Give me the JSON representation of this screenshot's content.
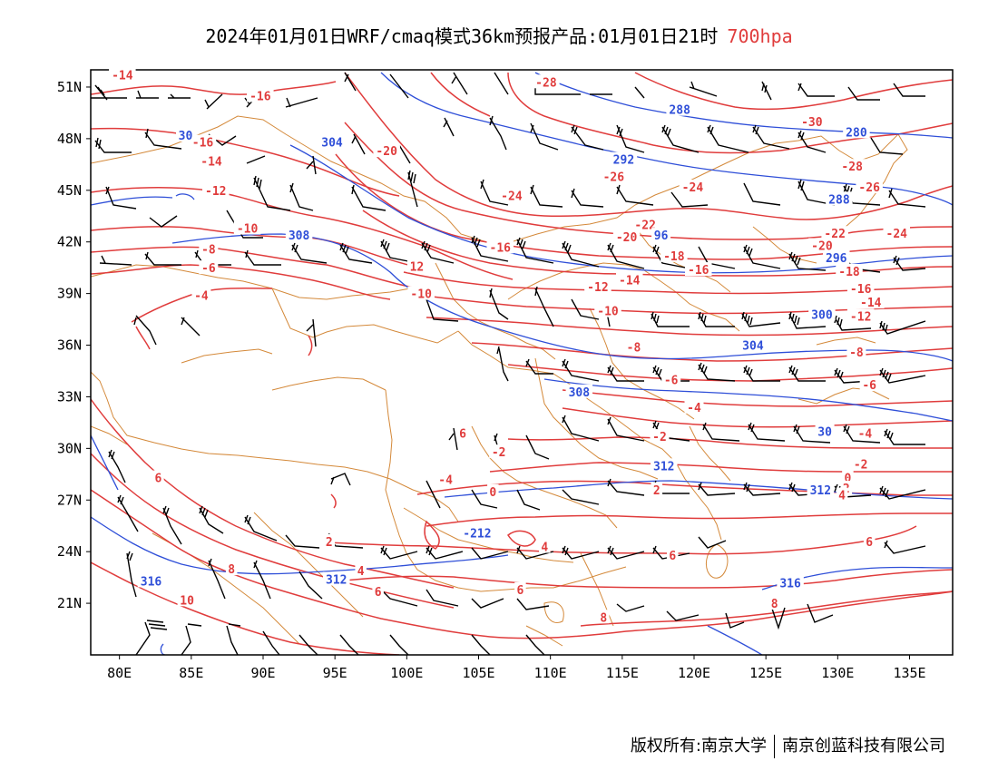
{
  "title": {
    "text": "2024年01月01日WRF/cmaq模式36km预报产品:01月01日21时",
    "level": "700hpa"
  },
  "footer": {
    "copyright": "版权所有:南京大学",
    "company": "南京创蓝科技有限公司"
  },
  "colors": {
    "temperature": "#e03c3c",
    "geopotential": "#2f4fd8",
    "boundary": "#d4893a",
    "wind": "#000000",
    "frame": "#000000"
  },
  "map": {
    "lon_range": [
      78,
      138
    ],
    "lat_range": [
      18,
      52
    ],
    "lon_ticks": [
      "80E",
      "85E",
      "90E",
      "95E",
      "100E",
      "105E",
      "110E",
      "115E",
      "120E",
      "125E",
      "130E",
      "135E"
    ],
    "lat_ticks": [
      "21N",
      "24N",
      "27N",
      "30N",
      "33N",
      "36N",
      "39N",
      "42N",
      "45N",
      "48N",
      "51N"
    ]
  },
  "temperature_labels": [
    {
      "text": "-14",
      "lon": 80.2,
      "lat": 51.7
    },
    {
      "text": "-16",
      "lon": 89.8,
      "lat": 50.5
    },
    {
      "text": "-16",
      "lon": 85.8,
      "lat": 47.8
    },
    {
      "text": "-14",
      "lon": 86.4,
      "lat": 46.7
    },
    {
      "text": "-12",
      "lon": 86.7,
      "lat": 45.0
    },
    {
      "text": "-10",
      "lon": 88.9,
      "lat": 42.8
    },
    {
      "text": "-8",
      "lon": 86.2,
      "lat": 41.6
    },
    {
      "text": "-6",
      "lon": 86.2,
      "lat": 40.5
    },
    {
      "text": "-4",
      "lon": 85.7,
      "lat": 38.9
    },
    {
      "text": "-20",
      "lon": 98.6,
      "lat": 47.3
    },
    {
      "text": "12",
      "lon": 100.7,
      "lat": 40.6
    },
    {
      "text": "-10",
      "lon": 101.0,
      "lat": 39.0
    },
    {
      "text": "-28",
      "lon": 109.7,
      "lat": 51.3
    },
    {
      "text": "-26",
      "lon": 114.4,
      "lat": 45.8
    },
    {
      "text": "-24",
      "lon": 107.3,
      "lat": 44.7
    },
    {
      "text": "-24",
      "lon": 119.9,
      "lat": 45.2
    },
    {
      "text": "-22",
      "lon": 116.6,
      "lat": 43.0
    },
    {
      "text": "-20",
      "lon": 115.3,
      "lat": 42.3
    },
    {
      "text": "-18",
      "lon": 118.6,
      "lat": 41.2
    },
    {
      "text": "-16",
      "lon": 106.5,
      "lat": 41.7
    },
    {
      "text": "-16",
      "lon": 120.3,
      "lat": 40.4
    },
    {
      "text": "-14",
      "lon": 115.5,
      "lat": 39.8
    },
    {
      "text": "-12",
      "lon": 113.3,
      "lat": 39.4
    },
    {
      "text": "-10",
      "lon": 114.0,
      "lat": 38.0
    },
    {
      "text": "-8",
      "lon": 115.8,
      "lat": 35.9
    },
    {
      "text": "-6",
      "lon": 118.4,
      "lat": 34.0
    },
    {
      "text": "-4",
      "lon": 120.0,
      "lat": 32.4
    },
    {
      "text": "-2",
      "lon": 117.6,
      "lat": 30.7
    },
    {
      "text": "0",
      "lon": 117.7,
      "lat": 29.1
    },
    {
      "text": "2",
      "lon": 117.4,
      "lat": 27.6
    },
    {
      "text": "4",
      "lon": 109.6,
      "lat": 24.3
    },
    {
      "text": "6",
      "lon": 118.5,
      "lat": 23.8
    },
    {
      "text": "6",
      "lon": 107.9,
      "lat": 21.8
    },
    {
      "text": "8",
      "lon": 113.7,
      "lat": 20.2
    },
    {
      "text": "-30",
      "lon": 128.2,
      "lat": 49.0
    },
    {
      "text": "-28",
      "lon": 131.0,
      "lat": 46.4
    },
    {
      "text": "-26",
      "lon": 132.2,
      "lat": 45.2
    },
    {
      "text": "-24",
      "lon": 134.1,
      "lat": 42.5
    },
    {
      "text": "-22",
      "lon": 129.8,
      "lat": 42.5
    },
    {
      "text": "-20",
      "lon": 128.9,
      "lat": 41.8
    },
    {
      "text": "-18",
      "lon": 130.8,
      "lat": 40.3
    },
    {
      "text": "-16",
      "lon": 131.6,
      "lat": 39.3
    },
    {
      "text": "-14",
      "lon": 132.3,
      "lat": 38.5
    },
    {
      "text": "-12",
      "lon": 131.6,
      "lat": 37.7
    },
    {
      "text": "-8",
      "lon": 131.3,
      "lat": 35.6
    },
    {
      "text": "-6",
      "lon": 132.2,
      "lat": 33.7
    },
    {
      "text": "-4",
      "lon": 131.9,
      "lat": 30.9
    },
    {
      "text": "-2",
      "lon": 131.6,
      "lat": 29.1
    },
    {
      "text": "0",
      "lon": 130.7,
      "lat": 28.3
    },
    {
      "text": "2",
      "lon": 130.6,
      "lat": 27.7
    },
    {
      "text": "4",
      "lon": 130.3,
      "lat": 27.3
    },
    {
      "text": "6",
      "lon": 132.2,
      "lat": 24.6
    },
    {
      "text": "8",
      "lon": 125.6,
      "lat": 21.0
    },
    {
      "text": "6",
      "lon": 103.9,
      "lat": 30.9
    },
    {
      "text": "-2",
      "lon": 106.4,
      "lat": 29.8
    },
    {
      "text": "-4",
      "lon": 102.7,
      "lat": 28.2
    },
    {
      "text": "0",
      "lon": 106.0,
      "lat": 27.5
    },
    {
      "text": "-2",
      "lon": 104.9,
      "lat": 25.2
    },
    {
      "text": "4",
      "lon": 96.8,
      "lat": 22.9
    },
    {
      "text": "6",
      "lon": 98.0,
      "lat": 21.7
    },
    {
      "text": "6",
      "lon": 82.7,
      "lat": 28.3
    },
    {
      "text": "2",
      "lon": 94.6,
      "lat": 24.6
    },
    {
      "text": "8",
      "lon": 87.8,
      "lat": 23.0
    },
    {
      "text": "10",
      "lon": 84.7,
      "lat": 21.2
    }
  ],
  "geopotential_labels": [
    {
      "text": "30",
      "lon": 84.6,
      "lat": 48.2
    },
    {
      "text": "304",
      "lon": 94.8,
      "lat": 47.8
    },
    {
      "text": "308",
      "lon": 92.5,
      "lat": 42.4
    },
    {
      "text": "288",
      "lon": 119.0,
      "lat": 49.7
    },
    {
      "text": "292",
      "lon": 115.1,
      "lat": 46.8
    },
    {
      "text": "96",
      "lon": 117.7,
      "lat": 42.4
    },
    {
      "text": "280",
      "lon": 131.3,
      "lat": 48.4
    },
    {
      "text": "288",
      "lon": 130.1,
      "lat": 44.5
    },
    {
      "text": "296",
      "lon": 129.9,
      "lat": 41.1
    },
    {
      "text": "300",
      "lon": 128.9,
      "lat": 37.8
    },
    {
      "text": "304",
      "lon": 124.1,
      "lat": 36.0
    },
    {
      "text": "308",
      "lon": 112.0,
      "lat": 33.3
    },
    {
      "text": "30",
      "lon": 129.1,
      "lat": 31.0
    },
    {
      "text": "312",
      "lon": 117.9,
      "lat": 29.0
    },
    {
      "text": "312",
      "lon": 128.8,
      "lat": 27.6
    },
    {
      "text": "316",
      "lon": 82.2,
      "lat": 22.3
    },
    {
      "text": "312",
      "lon": 95.1,
      "lat": 22.4
    },
    {
      "text": "316",
      "lon": 126.7,
      "lat": 22.2
    },
    {
      "text": "-212",
      "lon": 104.9,
      "lat": 25.1
    }
  ]
}
